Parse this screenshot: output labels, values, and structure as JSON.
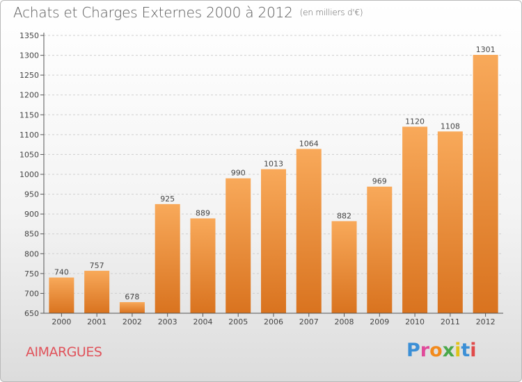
{
  "title": "Achats et Charges Externes 2000 à 2012",
  "unit": "(en milliers d'€)",
  "place": "AIMARGUES",
  "logo": {
    "letters": [
      "P",
      "r",
      "o",
      "x",
      "i",
      "t",
      "i"
    ],
    "colors": [
      "#3b8fd6",
      "#e04a9a",
      "#f28a1c",
      "#4aa84a",
      "#e0c31a",
      "#3b8fd6",
      "#e04a4a"
    ]
  },
  "colors": {
    "bar_top": "#f8a95a",
    "bar_bottom": "#d9731f",
    "axis": "#555555",
    "grid": "#cfcfcf",
    "place": "#e0525a"
  },
  "chart_data": {
    "type": "bar",
    "categories": [
      "2000",
      "2001",
      "2002",
      "2003",
      "2004",
      "2005",
      "2006",
      "2007",
      "2008",
      "2009",
      "2010",
      "2011",
      "2012"
    ],
    "values": [
      740,
      757,
      678,
      925,
      889,
      990,
      1013,
      1064,
      882,
      969,
      1120,
      1108,
      1301
    ],
    "title": "Achats et Charges Externes 2000 à 2012",
    "xlabel": "",
    "ylabel": "",
    "ylim": [
      650,
      1350
    ],
    "yticks": [
      650,
      700,
      750,
      800,
      850,
      900,
      950,
      1000,
      1050,
      1100,
      1150,
      1200,
      1250,
      1300,
      1350
    ],
    "grid": true
  }
}
